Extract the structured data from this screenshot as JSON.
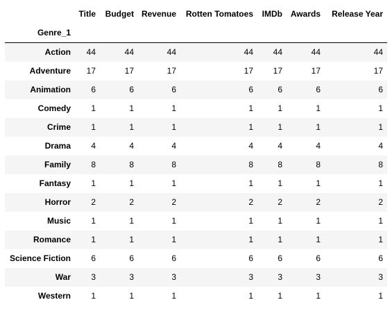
{
  "table": {
    "columns": [
      "Title",
      "Budget",
      "Revenue",
      "Rotten Tomatoes",
      "IMDb",
      "Awards",
      "Release Year"
    ],
    "index_name": "Genre_1",
    "rows": [
      {
        "label": "Action",
        "values": [
          "44",
          "44",
          "44",
          "44",
          "44",
          "44",
          "44"
        ]
      },
      {
        "label": "Adventure",
        "values": [
          "17",
          "17",
          "17",
          "17",
          "17",
          "17",
          "17"
        ]
      },
      {
        "label": "Animation",
        "values": [
          "6",
          "6",
          "6",
          "6",
          "6",
          "6",
          "6"
        ]
      },
      {
        "label": "Comedy",
        "values": [
          "1",
          "1",
          "1",
          "1",
          "1",
          "1",
          "1"
        ]
      },
      {
        "label": "Crime",
        "values": [
          "1",
          "1",
          "1",
          "1",
          "1",
          "1",
          "1"
        ]
      },
      {
        "label": "Drama",
        "values": [
          "4",
          "4",
          "4",
          "4",
          "4",
          "4",
          "4"
        ]
      },
      {
        "label": "Family",
        "values": [
          "8",
          "8",
          "8",
          "8",
          "8",
          "8",
          "8"
        ]
      },
      {
        "label": "Fantasy",
        "values": [
          "1",
          "1",
          "1",
          "1",
          "1",
          "1",
          "1"
        ]
      },
      {
        "label": "Horror",
        "values": [
          "2",
          "2",
          "2",
          "2",
          "2",
          "2",
          "2"
        ]
      },
      {
        "label": "Music",
        "values": [
          "1",
          "1",
          "1",
          "1",
          "1",
          "1",
          "1"
        ]
      },
      {
        "label": "Romance",
        "values": [
          "1",
          "1",
          "1",
          "1",
          "1",
          "1",
          "1"
        ]
      },
      {
        "label": "Science Fiction",
        "values": [
          "6",
          "6",
          "6",
          "6",
          "6",
          "6",
          "6"
        ]
      },
      {
        "label": "War",
        "values": [
          "3",
          "3",
          "3",
          "3",
          "3",
          "3",
          "3"
        ]
      },
      {
        "label": "Western",
        "values": [
          "1",
          "1",
          "1",
          "1",
          "1",
          "1",
          "1"
        ]
      }
    ]
  }
}
